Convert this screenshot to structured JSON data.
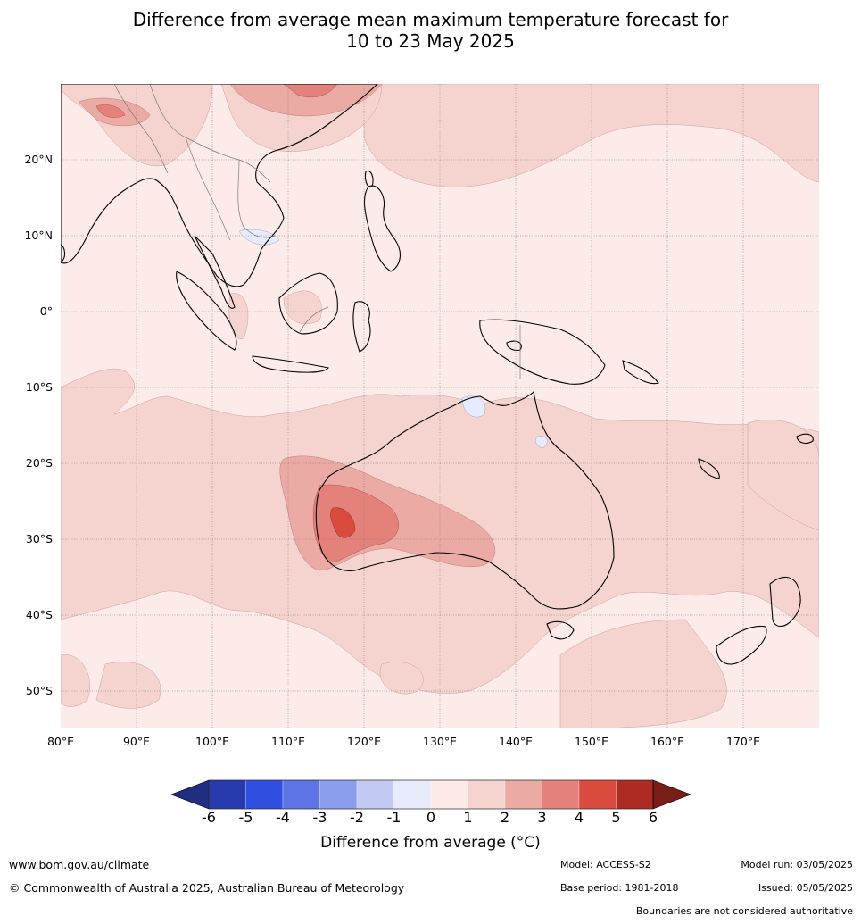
{
  "title": {
    "line1": "Difference from average mean maximum temperature forecast for",
    "line2": "10 to 23 May 2025"
  },
  "map": {
    "lat_labels": [
      "20°N",
      "10°N",
      "0°",
      "10°S",
      "20°S",
      "30°S",
      "40°S",
      "50°S"
    ],
    "lon_labels": [
      "80°E",
      "90°E",
      "100°E",
      "110°E",
      "120°E",
      "130°E",
      "140°E",
      "150°E",
      "160°E",
      "170°E"
    ]
  },
  "colorbar": {
    "label": "Difference from average (°C)",
    "ticks": [
      "-6",
      "-5",
      "-4",
      "-3",
      "-2",
      "-1",
      "0",
      "1",
      "2",
      "3",
      "4",
      "5",
      "6"
    ],
    "colors": [
      "#1f2e80",
      "#2639ad",
      "#2f4fe0",
      "#5d74e4",
      "#8a9cec",
      "#c2c9f3",
      "#e8ebfb",
      "#fcebe9",
      "#f5d3cf",
      "#ebaaa4",
      "#e4817a",
      "#d94c3d",
      "#ad2b22",
      "#7a1c17"
    ]
  },
  "footer": {
    "website": "www.bom.gov.au/climate",
    "copyright": "© Commonwealth of Australia 2025, Australian Bureau of Meteorology",
    "model": "Model: ACCESS-S2",
    "base_period": "Base period: 1981-2018",
    "model_run": "Model run: 03/05/2025",
    "issued": "Issued: 05/05/2025",
    "disclaimer": "Boundaries are not considered authoritative"
  }
}
